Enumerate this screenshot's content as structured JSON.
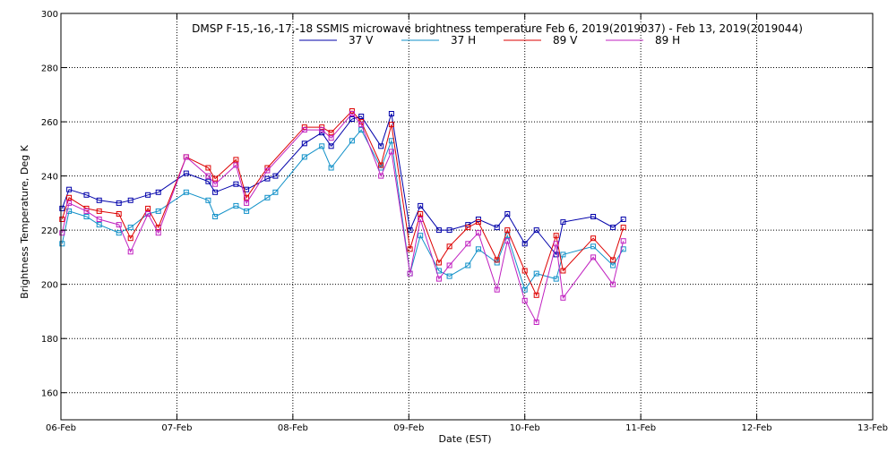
{
  "chart_data": {
    "type": "line",
    "title": "DMSP F-15,-16,-17,-18 SSMIS microwave brightness temperature Feb  6, 2019(2019037) - Feb 13, 2019(2019044)",
    "xlabel": "Date (EST)",
    "ylabel": "Brightness Temperature, Deg K",
    "xlim": [
      0,
      7
    ],
    "ylim": [
      150,
      300
    ],
    "x_ticks": [
      {
        "value": 0,
        "label": "06-Feb"
      },
      {
        "value": 1,
        "label": "07-Feb"
      },
      {
        "value": 2,
        "label": "08-Feb"
      },
      {
        "value": 3,
        "label": "09-Feb"
      },
      {
        "value": 4,
        "label": "10-Feb"
      },
      {
        "value": 5,
        "label": "11-Feb"
      },
      {
        "value": 6,
        "label": "12-Feb"
      },
      {
        "value": 7,
        "label": "13-Feb"
      }
    ],
    "y_ticks": [
      160,
      180,
      200,
      220,
      240,
      260,
      280,
      300
    ],
    "grid": true,
    "legend_position": "top",
    "series": [
      {
        "name": "37 V",
        "color": "#0000aa",
        "points": [
          [
            0.01,
            228
          ],
          [
            0.07,
            235
          ],
          [
            0.22,
            233
          ],
          [
            0.33,
            231
          ],
          [
            0.5,
            230
          ],
          [
            0.6,
            231
          ],
          [
            0.75,
            233
          ],
          [
            0.84,
            234
          ],
          [
            1.08,
            241
          ],
          [
            1.27,
            238
          ],
          [
            1.33,
            234
          ],
          [
            1.51,
            237
          ],
          [
            1.6,
            235
          ],
          [
            1.78,
            239
          ],
          [
            1.85,
            240
          ],
          [
            2.1,
            252
          ],
          [
            2.25,
            256
          ],
          [
            2.33,
            251
          ],
          [
            2.51,
            261
          ],
          [
            2.59,
            262
          ],
          [
            2.76,
            251
          ],
          [
            2.85,
            263
          ],
          [
            3.01,
            220
          ],
          [
            3.1,
            229
          ],
          [
            3.26,
            220
          ],
          [
            3.35,
            220
          ],
          [
            3.51,
            222
          ],
          [
            3.6,
            224
          ],
          [
            3.76,
            221
          ],
          [
            3.85,
            226
          ],
          [
            4.0,
            215
          ],
          [
            4.1,
            220
          ],
          [
            4.27,
            211
          ],
          [
            4.33,
            223
          ],
          [
            4.59,
            225
          ],
          [
            4.76,
            221
          ],
          [
            4.85,
            224
          ]
        ]
      },
      {
        "name": "37 H",
        "color": "#1090c8",
        "points": [
          [
            0.01,
            215
          ],
          [
            0.07,
            227
          ],
          [
            0.22,
            225
          ],
          [
            0.33,
            222
          ],
          [
            0.5,
            219
          ],
          [
            0.6,
            221
          ],
          [
            0.75,
            226
          ],
          [
            0.84,
            227
          ],
          [
            1.08,
            234
          ],
          [
            1.27,
            231
          ],
          [
            1.33,
            225
          ],
          [
            1.51,
            229
          ],
          [
            1.6,
            227
          ],
          [
            1.78,
            232
          ],
          [
            1.85,
            234
          ],
          [
            2.1,
            247
          ],
          [
            2.25,
            251
          ],
          [
            2.33,
            243
          ],
          [
            2.51,
            253
          ],
          [
            2.59,
            257
          ],
          [
            2.76,
            243
          ],
          [
            2.85,
            253
          ],
          [
            3.01,
            204
          ],
          [
            3.1,
            218
          ],
          [
            3.26,
            205
          ],
          [
            3.35,
            203
          ],
          [
            3.51,
            207
          ],
          [
            3.6,
            213
          ],
          [
            3.76,
            208
          ],
          [
            3.85,
            218
          ],
          [
            4.0,
            198
          ],
          [
            4.1,
            204
          ],
          [
            4.27,
            202
          ],
          [
            4.33,
            211
          ],
          [
            4.59,
            214
          ],
          [
            4.76,
            207
          ],
          [
            4.85,
            213
          ]
        ]
      },
      {
        "name": "89 V",
        "color": "#dd0000",
        "points": [
          [
            0.01,
            224
          ],
          [
            0.07,
            232
          ],
          [
            0.22,
            228
          ],
          [
            0.33,
            227
          ],
          [
            0.5,
            226
          ],
          [
            0.6,
            217
          ],
          [
            0.75,
            228
          ],
          [
            0.84,
            221
          ],
          [
            1.08,
            247
          ],
          [
            1.27,
            243
          ],
          [
            1.33,
            239
          ],
          [
            1.51,
            246
          ],
          [
            1.6,
            232
          ],
          [
            1.78,
            243
          ],
          [
            2.1,
            258
          ],
          [
            2.25,
            258
          ],
          [
            2.33,
            256
          ],
          [
            2.51,
            264
          ],
          [
            2.59,
            260
          ],
          [
            2.76,
            244
          ],
          [
            2.85,
            259
          ],
          [
            3.01,
            213
          ],
          [
            3.1,
            226
          ],
          [
            3.26,
            208
          ],
          [
            3.35,
            214
          ],
          [
            3.51,
            221
          ],
          [
            3.6,
            223
          ],
          [
            3.76,
            209
          ],
          [
            3.85,
            220
          ],
          [
            4.0,
            205
          ],
          [
            4.1,
            196
          ],
          [
            4.27,
            218
          ],
          [
            4.33,
            205
          ],
          [
            4.59,
            217
          ],
          [
            4.76,
            209
          ],
          [
            4.85,
            221
          ]
        ]
      },
      {
        "name": "89 H",
        "color": "#c020c0",
        "points": [
          [
            0.01,
            219
          ],
          [
            0.07,
            230
          ],
          [
            0.22,
            227
          ],
          [
            0.33,
            224
          ],
          [
            0.5,
            222
          ],
          [
            0.6,
            212
          ],
          [
            0.75,
            226
          ],
          [
            0.84,
            219
          ],
          [
            1.08,
            247
          ],
          [
            1.27,
            240
          ],
          [
            1.33,
            237
          ],
          [
            1.51,
            244
          ],
          [
            1.6,
            230
          ],
          [
            1.78,
            242
          ],
          [
            2.1,
            257
          ],
          [
            2.25,
            257
          ],
          [
            2.33,
            254
          ],
          [
            2.51,
            263
          ],
          [
            2.59,
            259
          ],
          [
            2.76,
            240
          ],
          [
            2.85,
            249
          ],
          [
            3.01,
            204
          ],
          [
            3.1,
            224
          ],
          [
            3.26,
            202
          ],
          [
            3.35,
            207
          ],
          [
            3.51,
            215
          ],
          [
            3.6,
            219
          ],
          [
            3.76,
            198
          ],
          [
            3.85,
            216
          ],
          [
            4.0,
            194
          ],
          [
            4.1,
            186
          ],
          [
            4.27,
            215
          ],
          [
            4.33,
            195
          ],
          [
            4.59,
            210
          ],
          [
            4.76,
            200
          ],
          [
            4.85,
            216
          ]
        ]
      }
    ]
  }
}
